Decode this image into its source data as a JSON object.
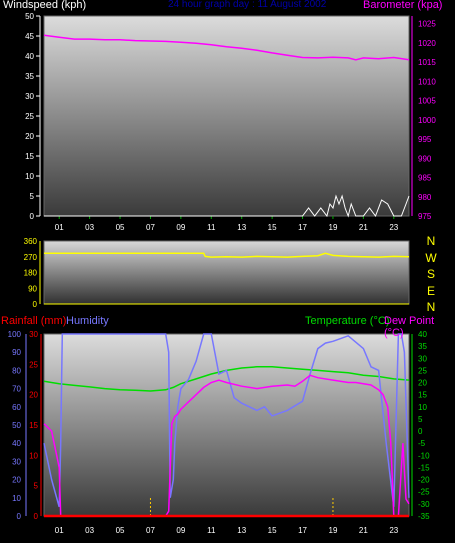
{
  "header": {
    "windspeed_label": "Windspeed (kph)",
    "title": "24 hour graph day : 11 August 2002",
    "barometer_label": "Barometer (kpa)"
  },
  "middle": {
    "direction_letters": [
      "N",
      "W",
      "S",
      "E",
      "N"
    ]
  },
  "lower_header": {
    "rainfall_label": "Rainfall (mm)",
    "humidity_label": "Humidity",
    "temperature_label": "Temperature (°C)",
    "dewpoint_label": "Dew Point (°C)"
  },
  "colors": {
    "windspeed": "#ffffff",
    "barometer": "#ff00ff",
    "direction": "#ffff00",
    "rainfall": "#ff0000",
    "humidity": "#7777ff",
    "temperature": "#00dd00",
    "dewpoint": "#ff00ff",
    "title": "#0000aa"
  },
  "chart_data": [
    {
      "type": "line",
      "panel": "wind-barometer",
      "x_tick_labels": [
        "01",
        "03",
        "05",
        "07",
        "09",
        "11",
        "13",
        "15",
        "17",
        "19",
        "21",
        "23"
      ],
      "xlim": [
        0,
        24
      ],
      "y_left": {
        "label": "Windspeed (kph)",
        "ticks": [
          0,
          5,
          10,
          15,
          20,
          25,
          30,
          35,
          40,
          45,
          50
        ],
        "range": [
          0,
          50
        ]
      },
      "y_right": {
        "label": "Barometer (kpa)",
        "ticks": [
          975,
          980,
          985,
          990,
          995,
          1000,
          1005,
          1010,
          1015,
          1020,
          1025
        ],
        "range": [
          975,
          1027
        ]
      },
      "series": [
        {
          "name": "Barometer (kpa)",
          "axis": "right",
          "x": [
            0,
            1,
            2,
            3,
            4,
            5,
            6,
            7,
            8,
            9,
            10,
            11,
            12,
            13,
            14,
            15,
            16,
            17,
            18,
            19,
            20,
            20.5,
            21,
            22,
            23,
            24
          ],
          "values": [
            1022,
            1021.5,
            1021,
            1021,
            1020.8,
            1020.8,
            1020.6,
            1020.5,
            1020.4,
            1020.2,
            1019.9,
            1019.5,
            1019,
            1018.6,
            1018.1,
            1017.4,
            1016.8,
            1016.2,
            1016.1,
            1016.3,
            1016.1,
            1015.6,
            1016.1,
            1015.9,
            1016.2,
            1015.6
          ]
        },
        {
          "name": "Windspeed (kph)",
          "axis": "left",
          "x": [
            0,
            17,
            17.4,
            17.8,
            18.2,
            18.6,
            18.8,
            19,
            19.2,
            19.4,
            19.6,
            19.8,
            20,
            20.2,
            20.5,
            21,
            21.4,
            21.8,
            22.2,
            22.6,
            23,
            23.5,
            23.8,
            24
          ],
          "values": [
            0,
            0,
            2,
            0,
            2,
            0,
            3,
            2,
            5,
            3,
            5,
            2,
            0,
            3,
            0,
            0,
            2,
            0,
            4,
            3,
            0,
            0,
            3,
            5
          ]
        }
      ]
    },
    {
      "type": "line",
      "panel": "wind-direction",
      "xlim": [
        0,
        24
      ],
      "y": {
        "ticks": [
          0,
          90,
          180,
          270,
          360
        ],
        "range": [
          0,
          360
        ]
      },
      "series": [
        {
          "name": "Wind direction",
          "x": [
            0,
            10.5,
            10.6,
            11,
            12,
            13,
            14,
            15,
            16,
            17,
            18,
            18.5,
            19,
            20,
            21,
            22,
            23,
            24
          ],
          "values": [
            290,
            290,
            272,
            268,
            270,
            268,
            272,
            270,
            268,
            272,
            276,
            290,
            278,
            272,
            270,
            268,
            272,
            270
          ]
        }
      ]
    },
    {
      "type": "line",
      "panel": "rain-humidity-temperature",
      "x_tick_labels": [
        "01",
        "03",
        "05",
        "07",
        "09",
        "11",
        "13",
        "15",
        "17",
        "19",
        "21",
        "23"
      ],
      "xlim": [
        0,
        24
      ],
      "y_rainfall": {
        "label": "Rainfall (mm)",
        "ticks": [
          0,
          5,
          10,
          15,
          20,
          25,
          30
        ],
        "range": [
          0,
          30
        ]
      },
      "y_humidity": {
        "label": "Humidity",
        "ticks": [
          0,
          10,
          20,
          30,
          40,
          50,
          60,
          70,
          80,
          90,
          100
        ],
        "range": [
          0,
          100
        ]
      },
      "y_temperature": {
        "label": "Temperature (°C)",
        "ticks": [
          -35,
          -30,
          -25,
          -20,
          -15,
          -10,
          -5,
          0,
          5,
          10,
          15,
          20,
          25,
          30,
          35,
          40
        ],
        "range": [
          -35,
          40
        ]
      },
      "series": [
        {
          "name": "Humidity",
          "axis": "humidity",
          "x": [
            0,
            0.5,
            1,
            1.1,
            1.2,
            8,
            8.2,
            8.3,
            8.5,
            8.6,
            8.8,
            9,
            9.5,
            10,
            10.5,
            11,
            11.5,
            12,
            12.5,
            13,
            13.5,
            14,
            14.5,
            15,
            16,
            17,
            17.5,
            18,
            18.5,
            19,
            20,
            21,
            21.5,
            22,
            22.5,
            23,
            23.3,
            23.5,
            23.7,
            24
          ],
          "values": [
            40,
            20,
            5,
            40,
            100,
            100,
            90,
            10,
            20,
            40,
            60,
            70,
            75,
            85,
            100,
            100,
            78,
            80,
            65,
            62,
            60,
            58,
            60,
            55,
            58,
            63,
            78,
            92,
            95,
            96,
            99,
            92,
            82,
            80,
            40,
            5,
            100,
            100,
            90,
            10
          ]
        },
        {
          "name": "Temperature (°C)",
          "axis": "temperature",
          "x": [
            0,
            1,
            2,
            3,
            4,
            5,
            6,
            7,
            8,
            8.5,
            9,
            10,
            11,
            12,
            13,
            14,
            15,
            16,
            17,
            18,
            19,
            20,
            21,
            22,
            23,
            24
          ],
          "values": [
            20.5,
            19.5,
            18.8,
            18.2,
            17.5,
            17,
            16.8,
            16.5,
            17,
            18,
            19.5,
            21.5,
            23.5,
            25,
            26,
            26.5,
            26.5,
            26,
            25.5,
            25,
            24.5,
            24,
            23,
            22.5,
            21.5,
            21
          ]
        },
        {
          "name": "Dew Point (°C)",
          "axis": "temperature",
          "x": [
            0,
            0.5,
            1,
            1.1,
            8,
            8.1,
            8.2,
            8.4,
            8.6,
            8.8,
            9,
            9.5,
            10,
            10.5,
            11,
            11.5,
            12,
            13,
            14,
            15,
            16,
            16.5,
            17,
            17.5,
            18,
            19,
            20,
            20.5,
            21,
            21.5,
            22,
            22.3,
            22.6,
            22.8,
            23,
            23.3,
            23.6,
            23.8,
            24
          ],
          "values": [
            3,
            0,
            -15,
            -35,
            -35,
            -34,
            -33,
            3,
            6,
            7,
            9,
            12,
            15,
            18,
            20,
            21,
            20,
            18.5,
            17.5,
            18.5,
            19,
            18.5,
            20.5,
            23,
            22,
            21,
            20,
            20,
            19.5,
            19,
            17,
            15,
            10,
            -5,
            -35,
            -35,
            -5,
            -28,
            -30
          ]
        },
        {
          "name": "Rainfall (mm)",
          "axis": "rainfall",
          "x": [
            0,
            24
          ],
          "values": [
            0,
            0
          ]
        }
      ]
    }
  ]
}
